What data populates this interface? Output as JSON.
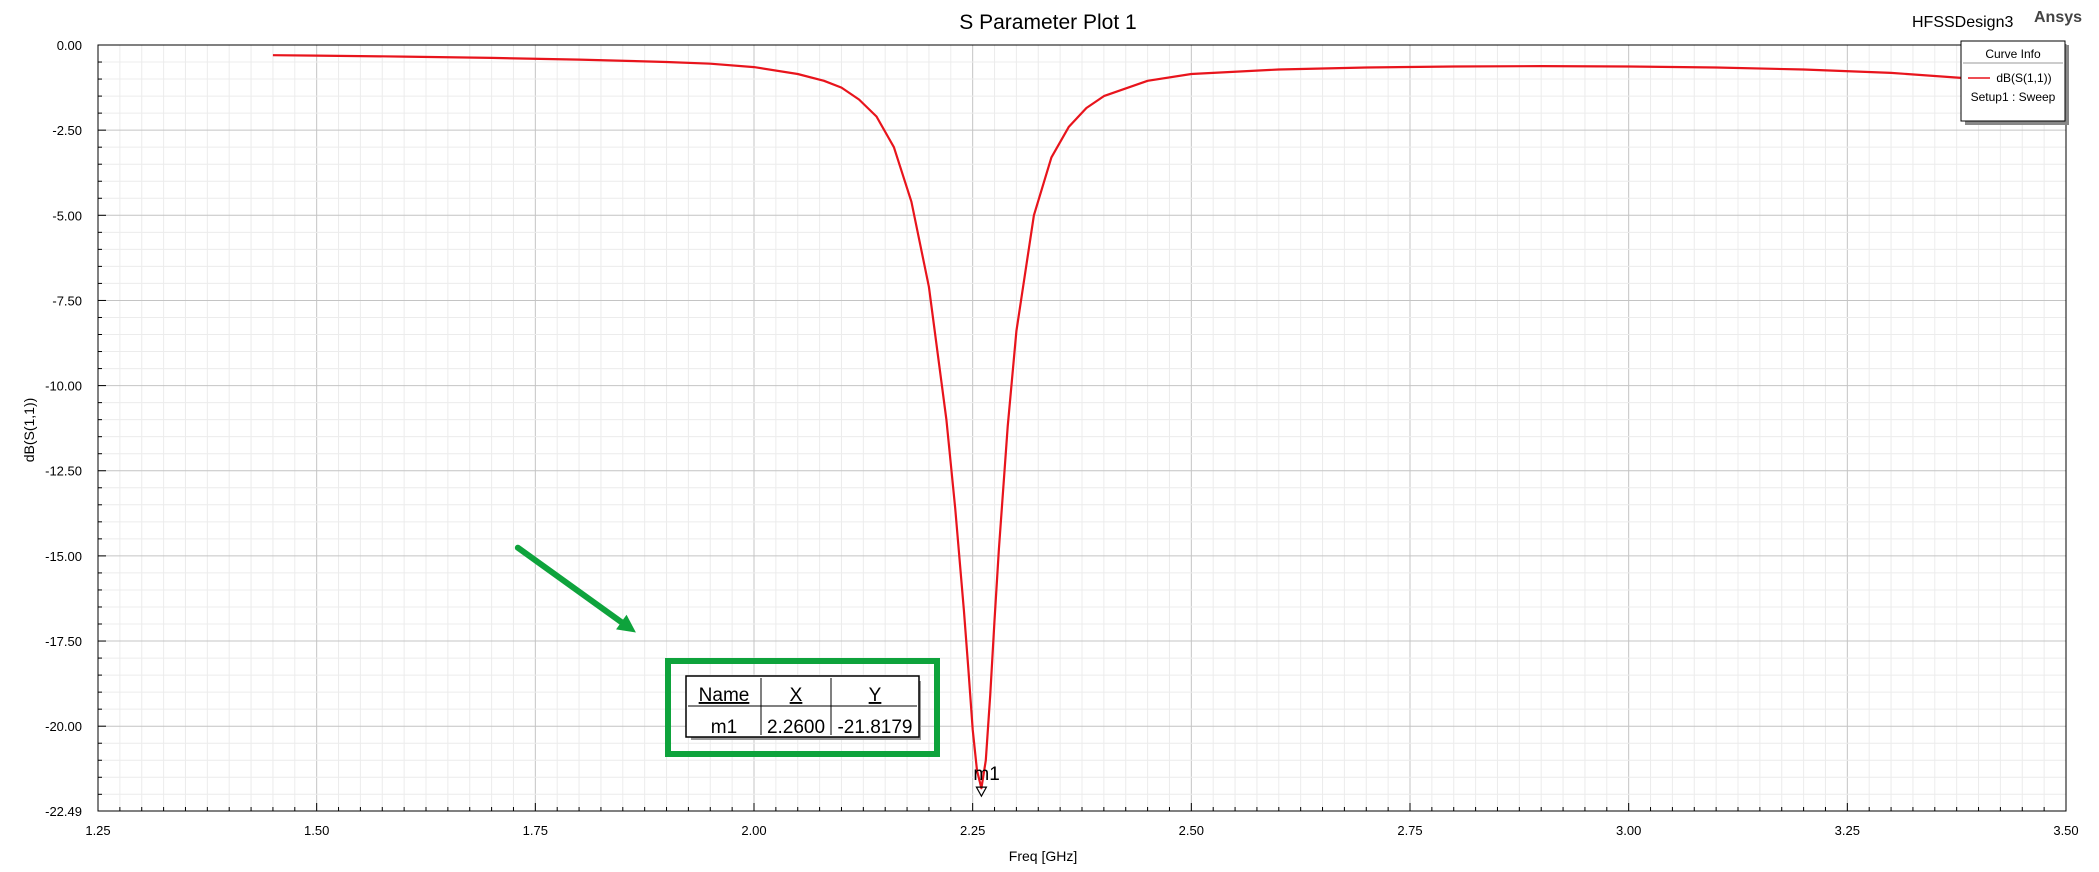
{
  "header": {
    "design_name": "HFSSDesign3",
    "brand": "Ansys"
  },
  "legend": {
    "title": "Curve Info",
    "entries": [
      {
        "label": "dB(S(1,1))",
        "color": "#e8141c"
      },
      {
        "label": "Setup1 : Sweep"
      }
    ]
  },
  "marker_table": {
    "headers": [
      "Name",
      "X",
      "Y"
    ],
    "rows": [
      [
        "m1",
        "2.2600",
        "-21.8179"
      ]
    ],
    "highlight_color": "#0ea33c"
  },
  "chart_data": {
    "type": "line",
    "title": "S Parameter Plot 1",
    "xlabel": "Freq [GHz]",
    "ylabel": "dB(S(1,1))",
    "xlim": [
      1.25,
      3.5
    ],
    "ylim": [
      -22.49,
      0.0
    ],
    "x_ticks": [
      "1.25",
      "1.50",
      "1.75",
      "2.00",
      "2.25",
      "2.50",
      "2.75",
      "3.00",
      "3.25",
      "3.50"
    ],
    "y_ticks": [
      "0.00",
      "-2.50",
      "-5.00",
      "-7.50",
      "-10.00",
      "-12.50",
      "-15.00",
      "-17.50",
      "-20.00",
      "-22.49"
    ],
    "grid": true,
    "legend_position": "top-right",
    "series": [
      {
        "name": "dB(S(1,1))",
        "color": "#e8141c",
        "x": [
          1.45,
          1.5,
          1.6,
          1.7,
          1.8,
          1.9,
          1.95,
          2.0,
          2.05,
          2.08,
          2.1,
          2.12,
          2.14,
          2.16,
          2.18,
          2.2,
          2.22,
          2.23,
          2.24,
          2.245,
          2.25,
          2.255,
          2.26,
          2.265,
          2.27,
          2.275,
          2.28,
          2.29,
          2.3,
          2.32,
          2.34,
          2.36,
          2.38,
          2.4,
          2.45,
          2.5,
          2.6,
          2.7,
          2.8,
          2.9,
          3.0,
          3.1,
          3.2,
          3.3,
          3.4,
          3.45,
          3.5
        ],
        "y": [
          -0.3,
          -0.31,
          -0.34,
          -0.38,
          -0.43,
          -0.5,
          -0.55,
          -0.65,
          -0.85,
          -1.05,
          -1.25,
          -1.6,
          -2.1,
          -3.0,
          -4.6,
          -7.1,
          -11.0,
          -13.6,
          -16.6,
          -18.3,
          -20.1,
          -21.3,
          -21.82,
          -21.0,
          -19.1,
          -16.9,
          -14.8,
          -11.2,
          -8.4,
          -5.0,
          -3.3,
          -2.4,
          -1.85,
          -1.5,
          -1.05,
          -0.85,
          -0.72,
          -0.66,
          -0.63,
          -0.62,
          -0.63,
          -0.66,
          -0.72,
          -0.82,
          -1.0,
          -1.12,
          -1.25
        ]
      }
    ],
    "markers": [
      {
        "name": "m1",
        "x": 2.26,
        "y": -21.8179
      }
    ],
    "annotation_arrow": {
      "from": [
        1.73,
        -14.76
      ],
      "to": [
        1.865,
        -17.25
      ],
      "color": "#0ea33c"
    }
  }
}
